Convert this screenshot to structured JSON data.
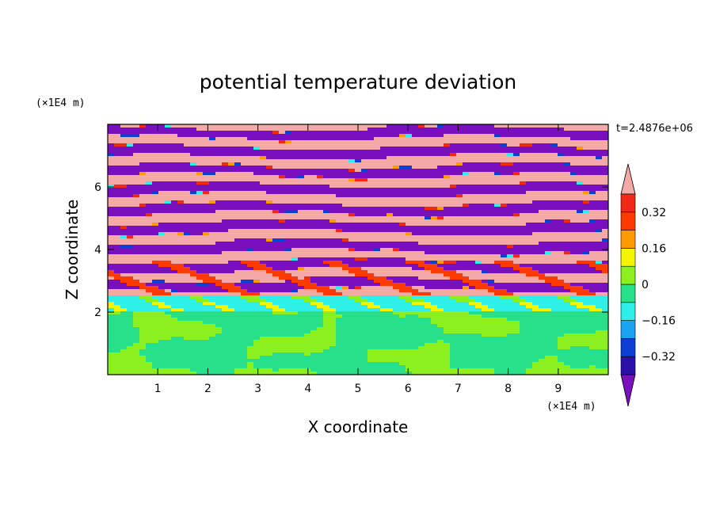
{
  "chart_data": {
    "type": "heatmap",
    "title": "potential temperature deviation",
    "xlabel": "X coordinate",
    "ylabel": "Z coordinate",
    "x_unit": "(×1E4 m)",
    "y_unit": "(×1E4 m)",
    "time_label": "t=2.4876e+06",
    "xlim": [
      0,
      10
    ],
    "ylim": [
      0,
      8
    ],
    "x_ticks": [
      1,
      2,
      3,
      4,
      5,
      6,
      7,
      8,
      9
    ],
    "y_ticks": [
      2,
      4,
      6
    ],
    "colorbar": {
      "levels": [
        -0.4,
        -0.32,
        -0.24,
        -0.16,
        -0.08,
        0,
        0.08,
        0.16,
        0.24,
        0.32,
        0.4
      ],
      "labels": [
        "0.32",
        "0.16",
        "0",
        "−0.16",
        "−0.32"
      ],
      "label_values": [
        0.32,
        0.16,
        0,
        -0.16,
        -0.32
      ],
      "colors": [
        "#7a0fbe",
        "#2a0fa8",
        "#0c3fd2",
        "#1aa3f0",
        "#2ef0e8",
        "#28e08a",
        "#8cf020",
        "#f5f500",
        "#ff9a00",
        "#ff3a00",
        "#f02818",
        "#f5a8a8"
      ],
      "extend": "both"
    },
    "regions": {
      "lower_layer": {
        "z_range": [
          0,
          2
        ],
        "dominant_colors": [
          "#28e08a",
          "#8cf020"
        ]
      },
      "transition": {
        "z_range": [
          2,
          2.5
        ],
        "dominant_colors": [
          "#2ef0e8"
        ]
      },
      "upper_layer": {
        "z_range": [
          2.5,
          8
        ],
        "dominant_colors": [
          "#7a0fbe",
          "#f5a8a8"
        ]
      }
    }
  }
}
